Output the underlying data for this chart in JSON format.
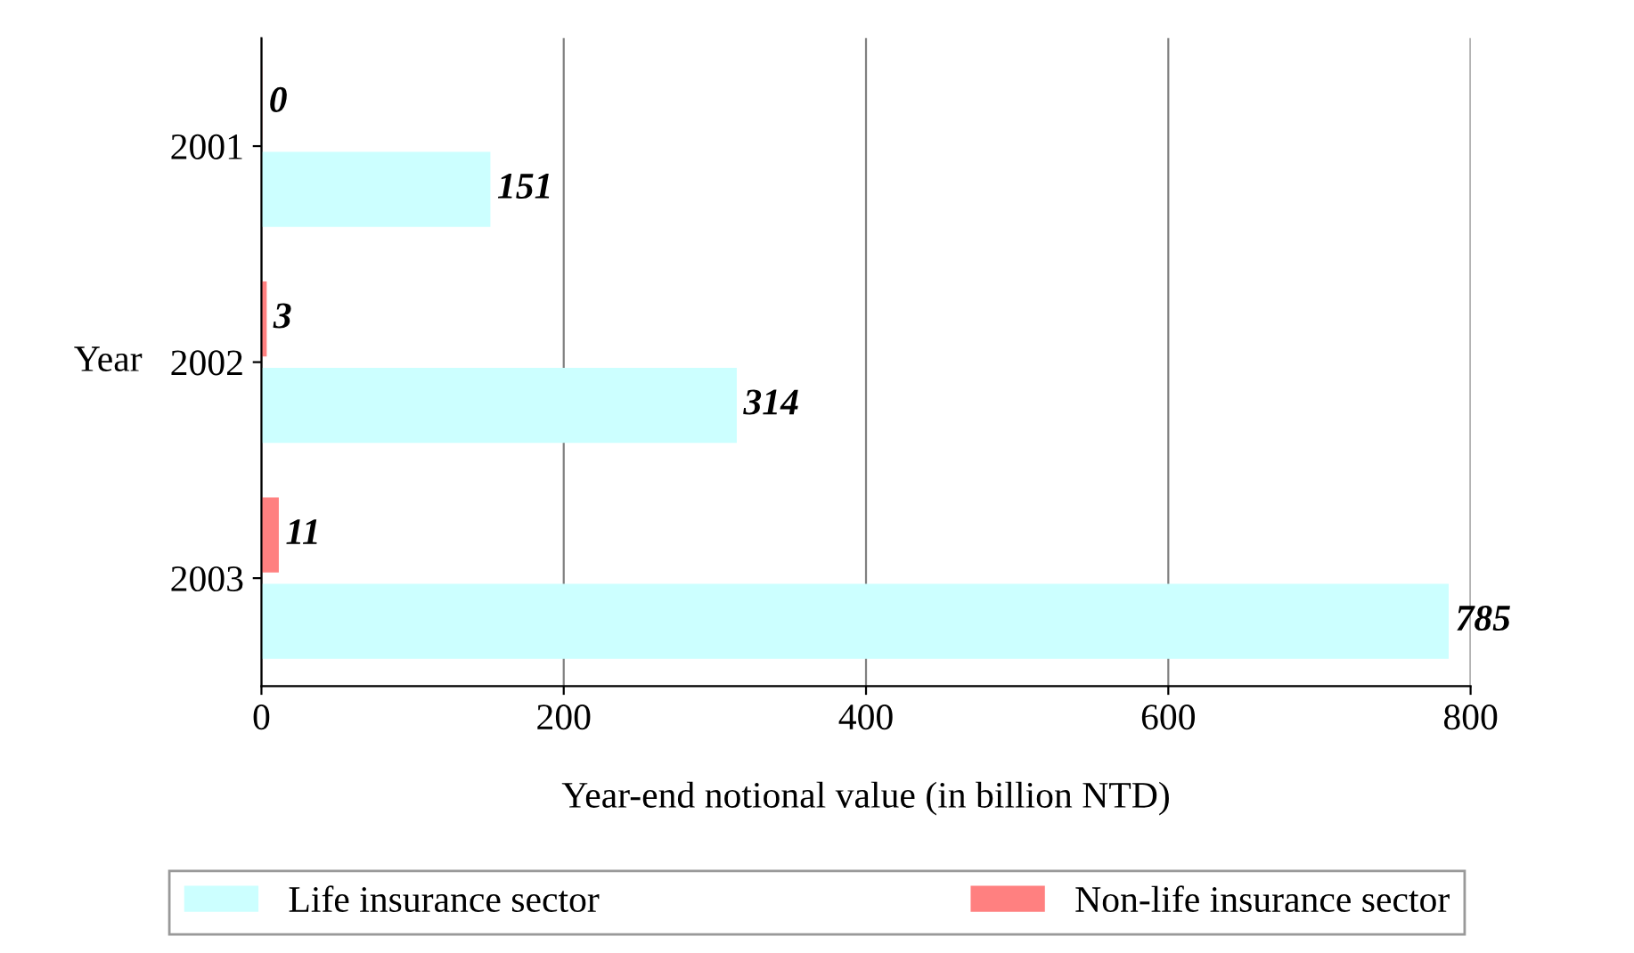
{
  "chart_data": {
    "type": "bar",
    "orientation": "horizontal",
    "xlabel": "Year-end notional value (in billion NTD)",
    "ylabel": "Year",
    "categories": [
      "2001",
      "2002",
      "2003"
    ],
    "series": [
      {
        "name": "Non-life insurance sector",
        "color": "#ff8080",
        "values": [
          0,
          3,
          11
        ]
      },
      {
        "name": "Life insurance sector",
        "color": "#ccffff",
        "values": [
          151,
          314,
          785
        ]
      }
    ],
    "xlim": [
      0,
      800
    ],
    "xticks": [
      0,
      200,
      400,
      600,
      800
    ],
    "grid": "x",
    "legend": "bottom",
    "data_labels": true
  }
}
